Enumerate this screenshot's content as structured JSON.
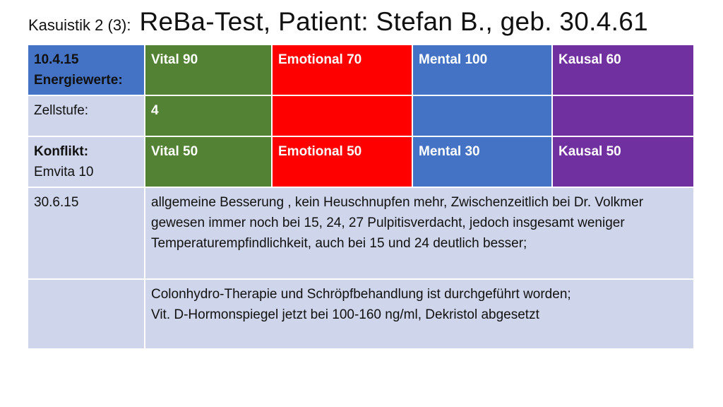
{
  "title": {
    "prefix": "Kasuistik 2 (3):",
    "main": "ReBa-Test, Patient: Stefan B., geb. 30.4.61"
  },
  "table": {
    "row1": {
      "label_line1": "10.4.15",
      "label_line2": "Energiewerte:",
      "vital": "Vital 90",
      "emotional": "Emotional 70",
      "mental": "Mental 100",
      "kausal": "Kausal 60"
    },
    "row2": {
      "label": "Zellstufe:",
      "vital": "4"
    },
    "row3": {
      "label_line1": "Konflikt:",
      "label_line2": "Emvita  10",
      "vital": "Vital  50",
      "emotional": "Emotional 50",
      "mental": "Mental 30",
      "kausal": "Kausal 50"
    },
    "row4": {
      "label": "30.6.15",
      "text": "allgemeine Besserung , kein Heuschnupfen mehr, Zwischenzeitlich bei Dr. Volkmer gewesen immer noch  bei 15, 24, 27 Pulpitisverdacht, jedoch insgesamt weniger Temperaturempfindlichkeit, auch bei 15 und 24 deutlich besser;"
    },
    "row5": {
      "label": "",
      "text_line1": "Colonhydro-Therapie und Schröpfbehandlung ist durchgeführt worden;",
      "text_line2": "Vit. D-Hormonspiegel  jetzt bei 100-160 ng/ml, Dekristol abgesetzt"
    }
  },
  "colors": {
    "label_bg": "#cfd5ea",
    "vital": "#548235",
    "emotional": "#ff0000",
    "mental": "#4472c4",
    "kausal": "#7030a0"
  }
}
